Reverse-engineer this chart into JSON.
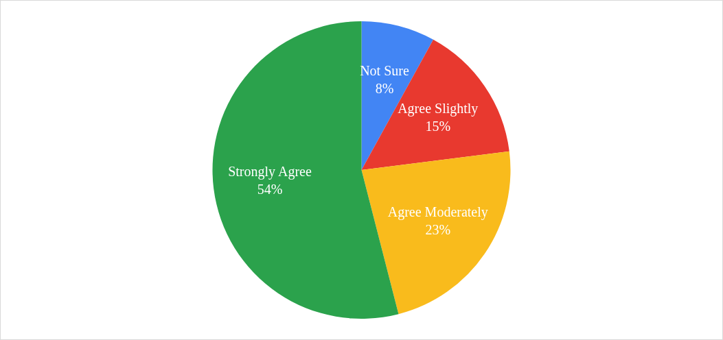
{
  "chart_data": {
    "type": "pie",
    "categories": [
      "Not Sure",
      "Agree Slightly",
      "Agree Moderately",
      "Strongly Agree"
    ],
    "values": [
      8,
      15,
      23,
      54
    ],
    "colors": [
      "#4285f4",
      "#e8392f",
      "#f9bb1c",
      "#2ba24c"
    ],
    "value_labels": [
      "8%",
      "15%",
      "23%",
      "54%"
    ]
  }
}
